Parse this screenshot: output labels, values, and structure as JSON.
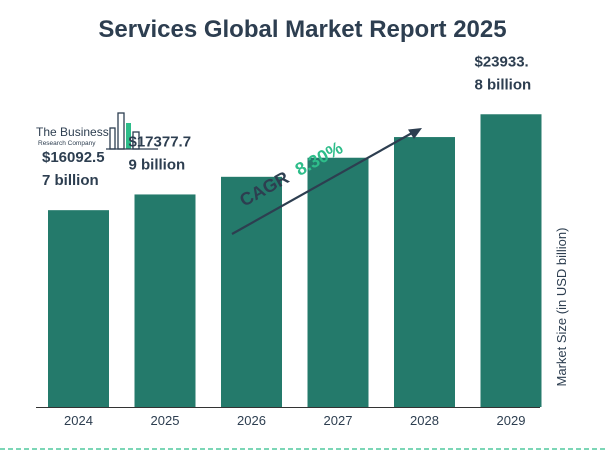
{
  "colors": {
    "bar": "#247a6b",
    "title": "#2d3e50",
    "text": "#2d3e50",
    "cagr_accent": "#2ebd8a",
    "baseline": "#333333",
    "dashed_border": "#2ebd8a",
    "logo_bar_accent": "#2ebd8a"
  },
  "logo": {
    "line1": "The Business",
    "line2": "Research Company"
  },
  "annotation": {
    "cagr_label": "CAGR",
    "cagr_value": "8.30%"
  },
  "chart_data": {
    "type": "bar",
    "title": "Services Global Market Report 2025",
    "xlabel": "",
    "ylabel": "Market Size (in USD billion)",
    "categories": [
      "2024",
      "2025",
      "2026",
      "2027",
      "2028",
      "2029"
    ],
    "values": [
      16092.57,
      17377.79,
      18820,
      20380,
      22070,
      23933.8
    ],
    "ylim": [
      0,
      25100
    ],
    "data_labels": [
      [
        "$16092.5",
        "7 billion"
      ],
      [
        "$17377.7",
        "9 billion"
      ],
      null,
      null,
      null,
      [
        "$23933.",
        "8 billion"
      ]
    ],
    "grid": false,
    "legend": "none"
  }
}
